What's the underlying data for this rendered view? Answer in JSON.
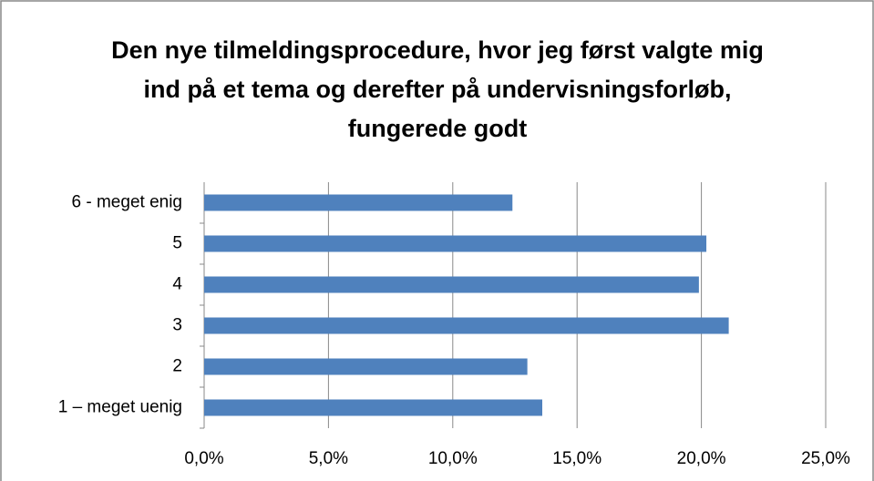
{
  "chart_data": {
    "type": "barh",
    "title": "Den nye tilmeldingsprocedure, hvor jeg først valgte mig ind på et tema og derefter på undervisningsforløb, fungerede godt",
    "categories": [
      "1 – meget uenig",
      "2",
      "3",
      "4",
      "5",
      "6 - meget enig"
    ],
    "values": [
      13.6,
      13.0,
      21.1,
      19.9,
      20.2,
      12.4
    ],
    "color": "#4f81bd",
    "xlim": [
      0,
      25
    ],
    "xticks": [
      {
        "value": 0,
        "label": "0,0%"
      },
      {
        "value": 5,
        "label": "5,0%"
      },
      {
        "value": 10,
        "label": "10,0%"
      },
      {
        "value": 15,
        "label": "15,0%"
      },
      {
        "value": 20,
        "label": "20,0%"
      },
      {
        "value": 25,
        "label": "25,0%"
      }
    ],
    "grid": true
  }
}
